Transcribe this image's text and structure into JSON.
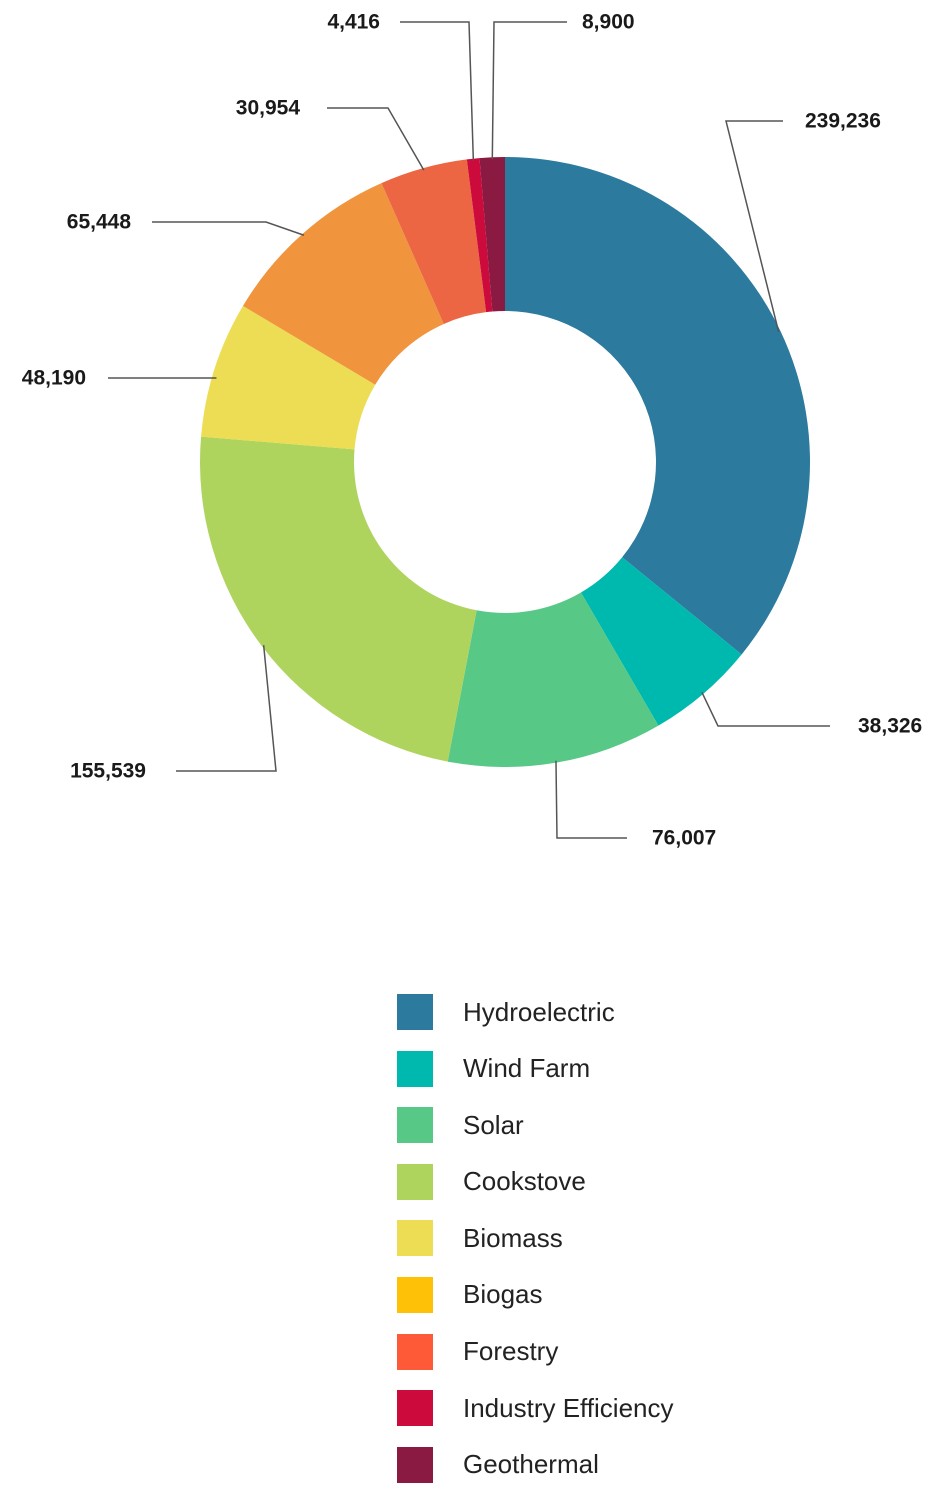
{
  "chart_data": {
    "type": "pie",
    "variant": "donut",
    "slices": [
      {
        "name": "Hydroelectric",
        "value": 239236,
        "label": "239,236",
        "color": "#2c7a9e"
      },
      {
        "name": "Wind Farm",
        "value": 38326,
        "label": "38,326",
        "color": "#00b9ae"
      },
      {
        "name": "Solar",
        "value": 76007,
        "label": "76,007",
        "color": "#57c886"
      },
      {
        "name": "Cookstove",
        "value": 155539,
        "label": "155,539",
        "color": "#afd45e"
      },
      {
        "name": "Biomass",
        "value": 48190,
        "label": "48,190",
        "color": "#ecdd54"
      },
      {
        "name": "Biogas",
        "value": 65448,
        "label": "65,448",
        "color": "#f0943e"
      },
      {
        "name": "Forestry",
        "value": 30954,
        "label": "30,954",
        "color": "#ec6644"
      },
      {
        "name": "Industry Efficiency",
        "value": 4416,
        "label": "4,416",
        "color": "#cc0a3c"
      },
      {
        "name": "Geothermal",
        "value": 8900,
        "label": "8,900",
        "color": "#8a1a42"
      }
    ],
    "legend": [
      {
        "label": "Hydroelectric",
        "color": "#2c7a9e"
      },
      {
        "label": "Wind Farm",
        "color": "#00b9ae"
      },
      {
        "label": "Solar",
        "color": "#57c886"
      },
      {
        "label": "Cookstove",
        "color": "#afd45e"
      },
      {
        "label": "Biomass",
        "color": "#ecdd54"
      },
      {
        "label": "Biogas",
        "color": "#ffc107"
      },
      {
        "label": "Forestry",
        "color": "#fe5a37"
      },
      {
        "label": "Industry Efficiency",
        "color": "#cc0a3c"
      },
      {
        "label": "Geothermal",
        "color": "#8a1a42"
      }
    ],
    "legend_placement": "bottom"
  }
}
